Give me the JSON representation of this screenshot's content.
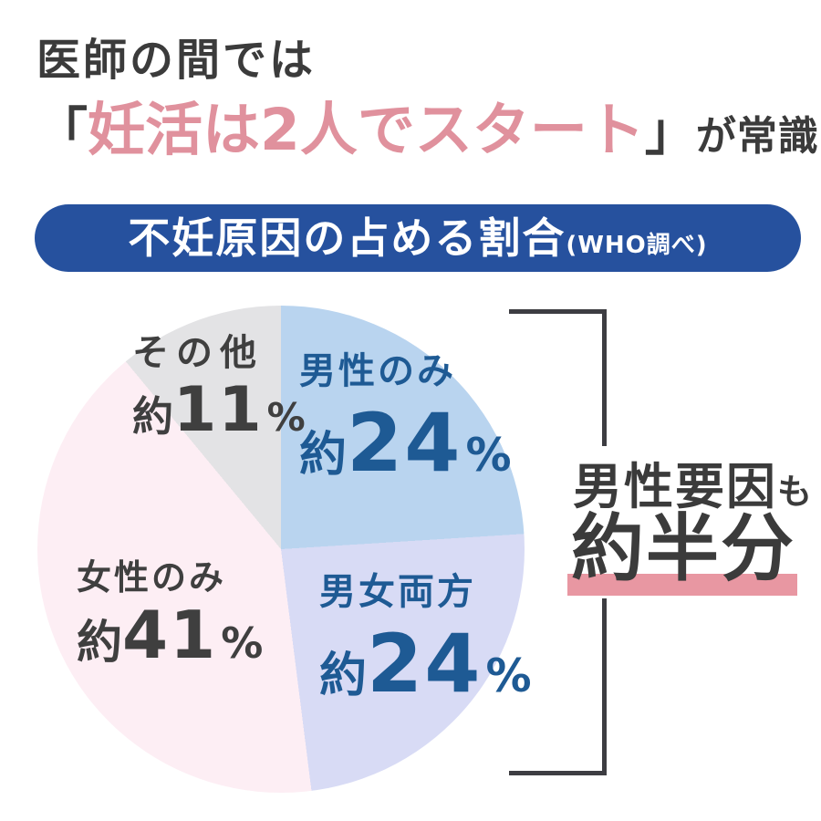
{
  "header": {
    "line1": "医師の間では",
    "open_bracket": "「",
    "highlight": "妊活は2人でスタート",
    "close_bracket": "」",
    "suffix": "が常識！",
    "highlight_color": "#e0919d",
    "text_color": "#3b3b3b"
  },
  "banner": {
    "title": "不妊原因の占める割合",
    "source_note": "(WHO調べ)",
    "bg_color": "#26519e",
    "text_color": "#ffffff"
  },
  "chart_data": {
    "type": "pie",
    "title": "不妊原因の占める割合(WHO調べ)",
    "start_angle_deg": 0,
    "direction": "clockwise",
    "slices": [
      {
        "name": "male-only",
        "label": "男性のみ",
        "approx": "約",
        "number": "24",
        "percent_sign": "%",
        "value_label": "約24%",
        "value_pct": 24,
        "color": "#b9d4ef",
        "label_color": "#1e5a94"
      },
      {
        "name": "both-sexes",
        "label": "男女両方",
        "approx": "約",
        "number": "24",
        "percent_sign": "%",
        "value_label": "約24%",
        "value_pct": 24,
        "color": "#d8dbf5",
        "label_color": "#1e5a94"
      },
      {
        "name": "female-only",
        "label": "女性のみ",
        "approx": "約",
        "number": "41",
        "percent_sign": "%",
        "value_label": "約41%",
        "value_pct": 41,
        "color": "#fdeef4",
        "label_color": "#3f3f3f"
      },
      {
        "name": "other",
        "label": "その他",
        "approx": "約",
        "number": "11",
        "percent_sign": "%",
        "value_label": "約11%",
        "value_pct": 11,
        "color": "#e3e3e5",
        "label_color": "#3f3f3f"
      }
    ],
    "annotation": {
      "line1": "男性要因",
      "line1_suffix": "も",
      "line2": "約半分",
      "meaning": "male factors ≈ half (24% + 24%)"
    }
  },
  "annotation_style": {
    "underline_color": "#e897a2",
    "bracket_color": "#3d3d42",
    "text_color": "#3b3b3b"
  }
}
